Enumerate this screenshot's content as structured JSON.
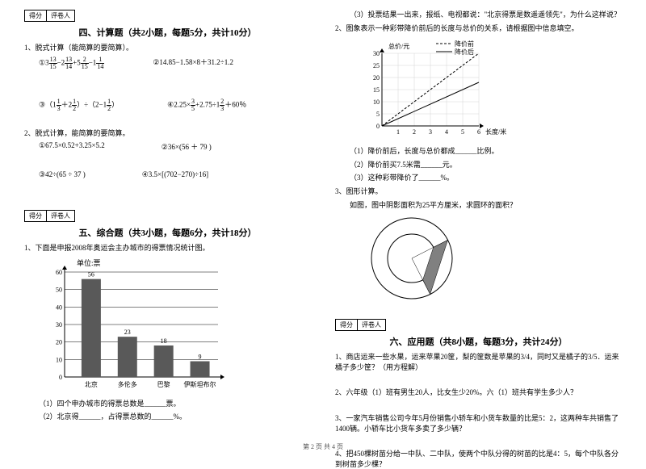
{
  "scorebox": {
    "c1": "得分",
    "c2": "评卷人"
  },
  "sec4": {
    "title": "四、计算题（共2小题，每题5分，共计10分）",
    "q1": "1、脱式计算（能简算的要简算）。",
    "e1a": {
      "pre": "①3",
      "f1n": "13",
      "f1d": "15",
      "m1": "−2",
      "f2n": "13",
      "f2d": "14",
      "m2": "+5",
      "f3n": "2",
      "f3d": "15",
      "m3": "−1",
      "f4n": "1",
      "f4d": "14"
    },
    "e1b": "②14.85−1.58×8＋31.2÷1.2",
    "e2a": {
      "pre": "③（1",
      "f1n": "1",
      "f1d": "3",
      "m1": "＋2",
      "f2n": "1",
      "f2d": "2",
      "m2": "）÷（2−1",
      "f3n": "1",
      "f3d": "2",
      "post": "）"
    },
    "e2b": {
      "pre": "④2.25×",
      "f1n": "3",
      "f1d": "5",
      "m1": "+2.75÷1",
      "f2n": "2",
      "f2d": "3",
      "post": "＋60％"
    },
    "q2": "2、脱式计算，能简算的要简算。",
    "r1a": "①67.5×0.52+3.25×5.2",
    "r1b": "②36×(56 ＋ 79 )",
    "r2a": "③42÷(65 ÷ 37 )",
    "r2b": "④3.5×[(702−270)÷16]"
  },
  "sec5": {
    "title": "五、综合题（共3小题，每题6分，共计18分）",
    "q1": "1、下面是申报2008年奥运会主办城市的得票情况统计图。",
    "chart": {
      "unit": "单位:票",
      "ymax": 60,
      "ystep": 10,
      "cats": [
        "北京",
        "多伦多",
        "巴黎",
        "伊斯坦布尔"
      ],
      "vals": [
        56,
        23,
        18,
        9
      ],
      "bar_color": "#595959",
      "bg": "#ffffff",
      "grid": "#000"
    },
    "s1": "（1）四个申办城市的得票总数是______票。",
    "s2": "（2）北京得______，占得票总数的______%。",
    "s3": "（3）投票结果一出来，报纸、电视都说：\"北京得票是数遥遥领先\"，为什么这样说？",
    "q2": "2、图象表示一种彩带降价前后的长度与总价的关系，请根据图中信息填空。",
    "legend": {
      "a": "降价前",
      "b": "降价后",
      "xl": "长度/米",
      "yl": "总价/元"
    },
    "linechart": {
      "xmax": 6,
      "ymax": 30,
      "xstep": 1,
      "ystep": 5,
      "before_color": "#000",
      "after_color": "#000",
      "before": [
        [
          0,
          0
        ],
        [
          6,
          30
        ]
      ],
      "after": [
        [
          0,
          0
        ],
        [
          6,
          18
        ]
      ],
      "bg": "#fff",
      "grid": "#999"
    },
    "p1": "（1）降价前后，长度与总价都成______比例。",
    "p2": "（2）降价前买7.5米需______元。",
    "p3": "（3）这种彩带降价了______%。",
    "q3": "3、图形计算。",
    "q3t": "如图，图中阴影面积为25平方厘米，求圆环的面积？",
    "ring": {
      "outer": 50,
      "inner": 30,
      "fill": "#bfbfbf",
      "shade": "#808080"
    }
  },
  "sec6": {
    "title": "六、应用题（共8小题，每题3分，共计24分）",
    "q1": "1、商店运来一些水果，运来苹果20筐，梨的筐数是苹果的3/4，同时又是橘子的3/5．运来橘子多少筐？（用方程解）",
    "q2": "2、六年级（1）班有男生20人，比女生少20%。六（1）班共有学生多少人？",
    "q3": "3、一家汽车销售公司今年5月份销售小轿车和小货车数量的比是5：2，这两种车共销售了1400辆。小轿车比小货车多卖了多少辆？",
    "q4": "4、把450棵树苗分给一中队、二中队，使两个中队分得的树苗的比是4：5，每个中队各分到树苗多少棵？"
  },
  "footer": "第 2 页 共 4 页"
}
